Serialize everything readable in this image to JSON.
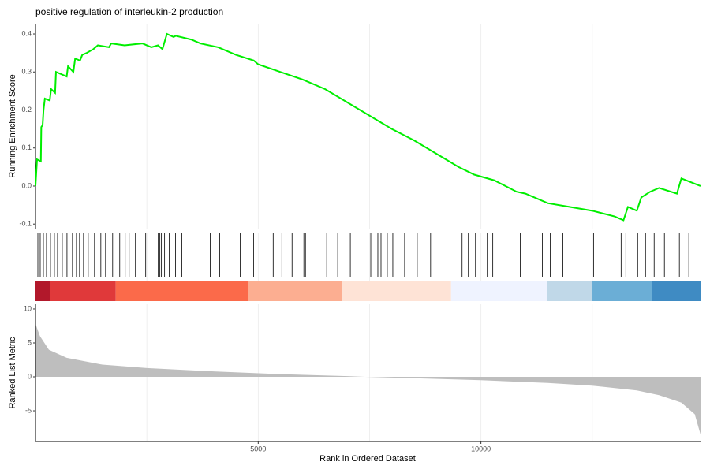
{
  "chart_data": [
    {
      "type": "line",
      "title": "positive regulation of interleukin-2 production",
      "ylabel": "Running Enrichment Score",
      "x": [
        0,
        35,
        120,
        130,
        160,
        180,
        210,
        320,
        350,
        440,
        460,
        700,
        730,
        850,
        890,
        1000,
        1050,
        1150,
        1300,
        1400,
        1650,
        1700,
        2000,
        2400,
        2600,
        2750,
        2850,
        2950,
        3100,
        3150,
        3500,
        3700,
        4100,
        4500,
        4900,
        5000,
        5500,
        6000,
        6500,
        7000,
        7500,
        8000,
        8500,
        9000,
        9500,
        9850,
        10300,
        10800,
        11000,
        11500,
        12000,
        12500,
        13000,
        13200,
        13300,
        13500,
        13600,
        13800,
        14000,
        14400,
        14500,
        14930
      ],
      "series": [
        {
          "color": "#00ee00",
          "values": [
            0,
            0.07,
            0.065,
            0.155,
            0.16,
            0.2,
            0.23,
            0.225,
            0.255,
            0.245,
            0.3,
            0.288,
            0.315,
            0.3,
            0.335,
            0.33,
            0.345,
            0.35,
            0.36,
            0.37,
            0.365,
            0.375,
            0.37,
            0.375,
            0.365,
            0.37,
            0.36,
            0.4,
            0.392,
            0.395,
            0.385,
            0.375,
            0.365,
            0.345,
            0.33,
            0.32,
            0.3,
            0.28,
            0.255,
            0.22,
            0.185,
            0.15,
            0.12,
            0.085,
            0.05,
            0.03,
            0.015,
            -0.015,
            -0.02,
            -0.045,
            -0.055,
            -0.065,
            -0.08,
            -0.09,
            -0.055,
            -0.065,
            -0.03,
            -0.015,
            -0.005,
            -0.02,
            0.02,
            0
          ]
        }
      ],
      "xlim": [
        0,
        14930
      ],
      "ylim": [
        -0.112,
        0.427
      ],
      "yticks": [
        -0.1,
        {
          "value": 0,
          "label": "0.0"
        },
        0.1,
        0.2,
        0.3,
        0.4
      ]
    },
    {
      "type": "rug",
      "color": "#000000",
      "x": [
        53,
        106,
        177,
        247,
        336,
        424,
        495,
        601,
        707,
        830,
        919,
        989,
        1078,
        1184,
        1325,
        1467,
        1573,
        1732,
        1891,
        2014,
        2103,
        2244,
        2474,
        2757,
        2792,
        2827,
        2898,
        3004,
        3145,
        3287,
        3446,
        3781,
        3923,
        4135,
        4453,
        4594,
        4895,
        5336,
        5531,
        5760,
        6025,
        6061,
        6538,
        6785,
        7068,
        7527,
        7686,
        7757,
        7898,
        8022,
        8287,
        8570,
        8870,
        9577,
        9718,
        9878,
        10143,
        10266,
        10885,
        11380,
        11556,
        11839,
        12157,
        12528,
        13147,
        13253,
        13518,
        13695,
        13889,
        14119,
        14455,
        14667
      ],
      "color_bands": [
        {
          "start": 0,
          "end": 336,
          "color": "#b2182b"
        },
        {
          "start": 336,
          "end": 1802,
          "color": "#e0393a"
        },
        {
          "start": 1802,
          "end": 4771,
          "color": "#fb6a4a"
        },
        {
          "start": 4771,
          "end": 6874,
          "color": "#fcae91"
        },
        {
          "start": 6874,
          "end": 9330,
          "color": "#fee3d6"
        },
        {
          "start": 9330,
          "end": 11486,
          "color": "#eff3ff"
        },
        {
          "start": 11486,
          "end": 12493,
          "color": "#c0d8e8"
        },
        {
          "start": 12493,
          "end": 13836,
          "color": "#6baed6"
        },
        {
          "start": 13836,
          "end": 14930,
          "color": "#3f8bc3"
        }
      ],
      "xlim": [
        0,
        14930
      ]
    },
    {
      "type": "area",
      "ylabel": "Ranked List Metric",
      "xlabel": "Rank in Ordered Dataset",
      "color": "#bebebe",
      "x": [
        0,
        100,
        300,
        700,
        1500,
        2500,
        4000,
        5500,
        7000,
        7400,
        8500,
        10000,
        11500,
        12500,
        13500,
        14000,
        14500,
        14800,
        14930
      ],
      "values": [
        7.8,
        6,
        4,
        2.8,
        1.8,
        1.3,
        0.8,
        0.4,
        0.1,
        0,
        -0.2,
        -0.5,
        -0.9,
        -1.3,
        -2,
        -2.7,
        -3.8,
        -5.5,
        -8.5
      ],
      "xlim": [
        0,
        14930
      ],
      "ylim": [
        -9.53,
        10.81
      ],
      "yticks": [
        -5,
        0,
        5,
        10
      ],
      "xticks": [
        5000,
        10000
      ],
      "minor_xticks": [
        2500,
        7500,
        12500
      ]
    }
  ]
}
